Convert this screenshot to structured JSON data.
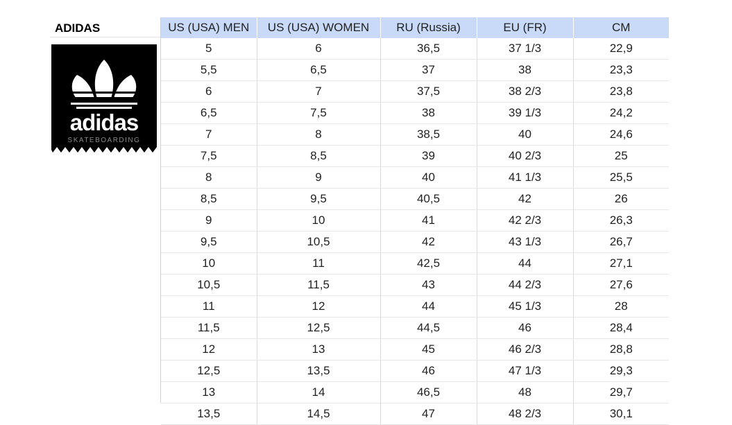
{
  "brand": {
    "title": "ADIDAS",
    "logo_wordmark": "adidas",
    "logo_subtitle": "SKATEBOARDING"
  },
  "table": {
    "headers": [
      "US (USA) MEN",
      "US (USA) WOMEN",
      "RU (Russia)",
      "EU (FR)",
      "CM"
    ],
    "rows": [
      [
        "5",
        "6",
        "36,5",
        "37 1/3",
        "22,9"
      ],
      [
        "5,5",
        "6,5",
        "37",
        "38",
        "23,3"
      ],
      [
        "6",
        "7",
        "37,5",
        "38 2/3",
        "23,8"
      ],
      [
        "6,5",
        "7,5",
        "38",
        "39 1/3",
        "24,2"
      ],
      [
        "7",
        "8",
        "38,5",
        "40",
        "24,6"
      ],
      [
        "7,5",
        "8,5",
        "39",
        "40 2/3",
        "25"
      ],
      [
        "8",
        "9",
        "40",
        "41 1/3",
        "25,5"
      ],
      [
        "8,5",
        "9,5",
        "40,5",
        "42",
        "26"
      ],
      [
        "9",
        "10",
        "41",
        "42 2/3",
        "26,3"
      ],
      [
        "9,5",
        "10,5",
        "42",
        "43 1/3",
        "26,7"
      ],
      [
        "10",
        "11",
        "42,5",
        "44",
        "27,1"
      ],
      [
        "10,5",
        "11,5",
        "43",
        "44 2/3",
        "27,6"
      ],
      [
        "11",
        "12",
        "44",
        "45 1/3",
        "28"
      ],
      [
        "11,5",
        "12,5",
        "44,5",
        "46",
        "28,4"
      ],
      [
        "12",
        "13",
        "45",
        "46 2/3",
        "28,8"
      ],
      [
        "12,5",
        "13,5",
        "46",
        "47 1/3",
        "29,3"
      ],
      [
        "13",
        "14",
        "46,5",
        "48",
        "29,7"
      ],
      [
        "13,5",
        "14,5",
        "47",
        "48 2/3",
        "30,1"
      ]
    ]
  },
  "colors": {
    "header_bg": "#c9daf8",
    "logo_bg": "#000000",
    "logo_fg": "#ffffff"
  }
}
